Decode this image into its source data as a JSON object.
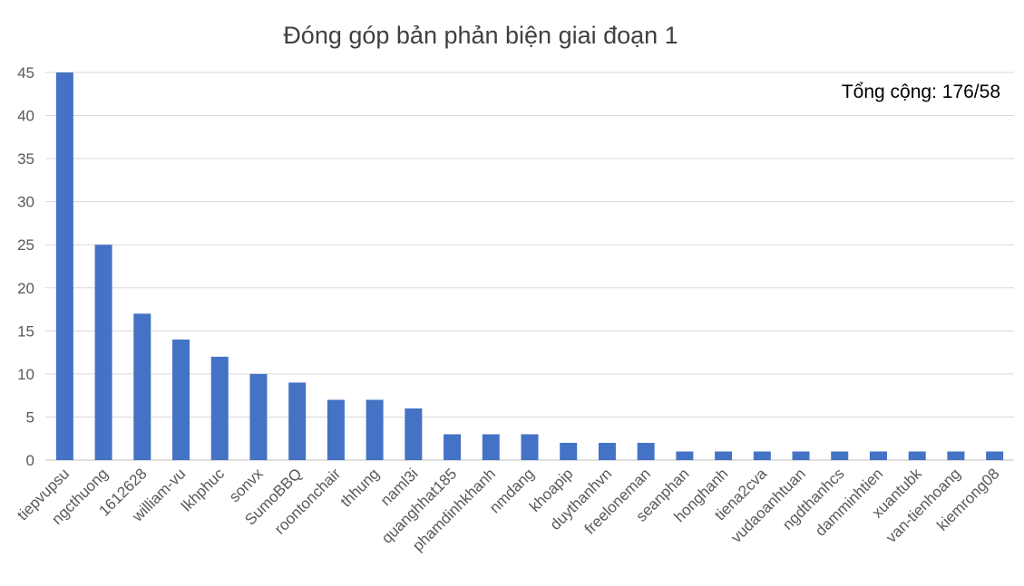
{
  "chart_data": {
    "type": "bar",
    "title": "Đóng góp bản phản biện giai đoạn 1",
    "annotation": "Tổng cộng: 176/58",
    "categories": [
      "tiepvupsu",
      "ngcthuong",
      "1612628",
      "william-vu",
      "lkhphuc",
      "sonvx",
      "SumoBBQ",
      "roontonchair",
      "thhung",
      "naml3i",
      "quanghhat185",
      "phamdinhkhanh",
      "nmdang",
      "khoapip",
      "duythanhvn",
      "freeloneman",
      "seanphan",
      "honghanh",
      "tiena2cva",
      "vudaoanhtuan",
      "ngdthanhcs",
      "damminhtien",
      "xuantubk",
      "van-tienhoang",
      "kiemrong08"
    ],
    "values": [
      45,
      25,
      17,
      14,
      12,
      10,
      9,
      7,
      7,
      6,
      3,
      3,
      3,
      2,
      2,
      2,
      1,
      1,
      1,
      1,
      1,
      1,
      1,
      1,
      1
    ],
    "ylim": [
      0,
      45
    ],
    "yticks": [
      0,
      5,
      10,
      15,
      20,
      25,
      30,
      35,
      40,
      45
    ],
    "grid": true,
    "bar_color": "#4472C4"
  }
}
